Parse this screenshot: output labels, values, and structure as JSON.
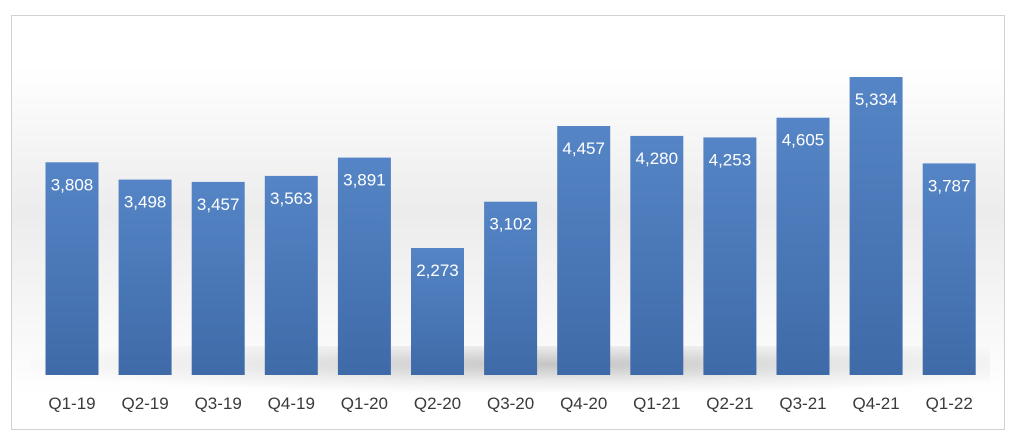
{
  "chart_data": {
    "type": "bar",
    "categories": [
      "Q1-19",
      "Q2-19",
      "Q3-19",
      "Q4-19",
      "Q1-20",
      "Q2-20",
      "Q3-20",
      "Q4-20",
      "Q1-21",
      "Q2-21",
      "Q3-21",
      "Q4-21",
      "Q1-22"
    ],
    "values": [
      3808,
      3498,
      3457,
      3563,
      3891,
      2273,
      3102,
      4457,
      4280,
      4253,
      4605,
      5334,
      3787
    ],
    "value_labels": [
      "3,808",
      "3,498",
      "3,457",
      "3,563",
      "3,891",
      "2,273",
      "3,102",
      "4,457",
      "4,280",
      "4,253",
      "4,605",
      "5,334",
      "3,787"
    ],
    "title": "",
    "xlabel": "",
    "ylabel": "",
    "ylim": [
      0,
      5334
    ],
    "grid": false,
    "legend": "none",
    "colors": {
      "bar_top": "#5585c6",
      "bar_bottom": "#3f6aa8",
      "value_text": "#ffffff",
      "tick_text": "#3a3a3a"
    }
  }
}
